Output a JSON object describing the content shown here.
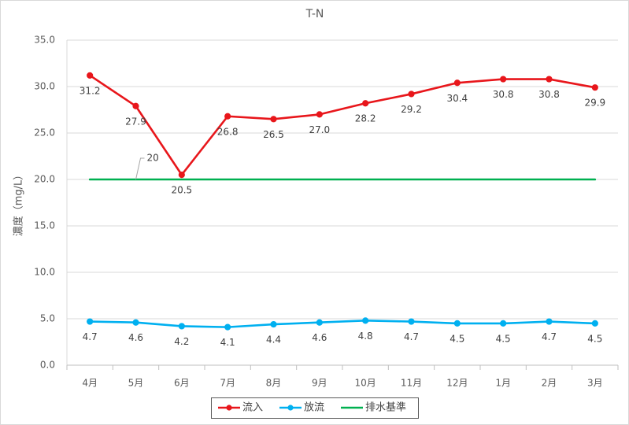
{
  "chart_data": {
    "type": "line",
    "title": "T-N",
    "xlabel": "",
    "ylabel": "濃度（mg/L）",
    "ylim": [
      0,
      35
    ],
    "yticks": [
      "0.0",
      "5.0",
      "10.0",
      "15.0",
      "20.0",
      "25.0",
      "30.0",
      "35.0"
    ],
    "grid": "horizontal",
    "legend": "bottom",
    "categories": [
      "4月",
      "5月",
      "6月",
      "7月",
      "8月",
      "9月",
      "10月",
      "11月",
      "12月",
      "1月",
      "2月",
      "3月"
    ],
    "series": [
      {
        "name": "流入",
        "color": "#e8161b",
        "marker": "circle",
        "values": [
          31.2,
          27.9,
          20.5,
          26.8,
          26.5,
          27.0,
          28.2,
          29.2,
          30.4,
          30.8,
          30.8,
          29.9
        ],
        "labels": [
          "31.2",
          "27.9",
          "20.5",
          "26.8",
          "26.5",
          "27.0",
          "28.2",
          "29.2",
          "30.4",
          "30.8",
          "30.8",
          "29.9"
        ]
      },
      {
        "name": "放流",
        "color": "#00b0f0",
        "marker": "circle",
        "values": [
          4.7,
          4.6,
          4.2,
          4.1,
          4.4,
          4.6,
          4.8,
          4.7,
          4.5,
          4.5,
          4.7,
          4.5
        ],
        "labels": [
          "4.7",
          "4.6",
          "4.2",
          "4.1",
          "4.4",
          "4.6",
          "4.8",
          "4.7",
          "4.5",
          "4.5",
          "4.7",
          "4.5"
        ]
      },
      {
        "name": "排水基準",
        "color": "#00b050",
        "marker": "none",
        "values": [
          20,
          20,
          20,
          20,
          20,
          20,
          20,
          20,
          20,
          20,
          20,
          20
        ],
        "labels": [
          null,
          "20",
          null,
          null,
          null,
          null,
          null,
          null,
          null,
          null,
          null,
          null
        ]
      }
    ]
  }
}
